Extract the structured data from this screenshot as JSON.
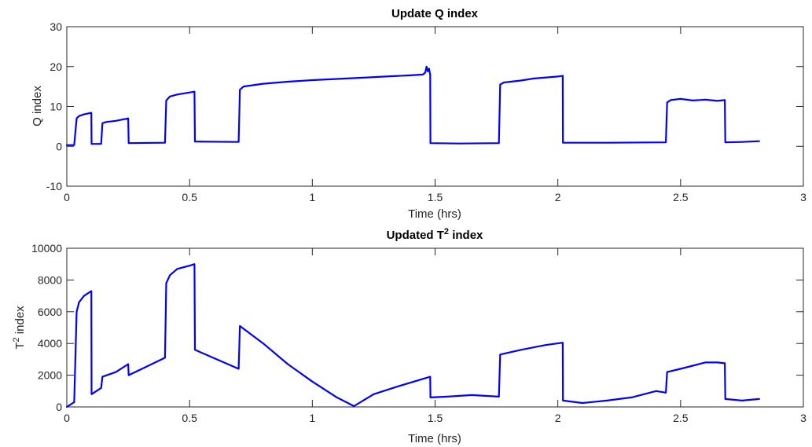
{
  "chart_data": [
    {
      "type": "line",
      "title": "Update Q index",
      "xlabel": "Time (hrs)",
      "ylabel": "Q index",
      "xlim": [
        0,
        3
      ],
      "ylim": [
        -10,
        30
      ],
      "x_ticks": [
        "0",
        "0.5",
        "1",
        "1.5",
        "2",
        "2.5",
        "3"
      ],
      "y_ticks": [
        "-10",
        "0",
        "10",
        "20",
        "30"
      ],
      "grid": false,
      "line_color": "#0000ff",
      "series": [
        {
          "x": [
            0.0,
            0.03,
            0.04,
            0.05,
            0.07,
            0.1,
            0.101,
            0.14,
            0.145,
            0.16,
            0.2,
            0.25,
            0.252,
            0.4,
            0.405,
            0.42,
            0.45,
            0.52,
            0.522,
            0.7,
            0.705,
            0.72,
            0.8,
            0.9,
            1.0,
            1.1,
            1.2,
            1.3,
            1.4,
            1.45,
            1.46,
            1.465,
            1.47,
            1.475,
            1.48,
            1.481,
            1.6,
            1.76,
            1.765,
            1.78,
            1.85,
            1.9,
            2.0,
            2.02,
            2.021,
            2.2,
            2.44,
            2.445,
            2.46,
            2.5,
            2.55,
            2.6,
            2.65,
            2.68,
            2.682,
            2.75,
            2.82
          ],
          "y": [
            0.3,
            0.3,
            7.0,
            7.6,
            8.0,
            8.4,
            0.6,
            0.6,
            5.8,
            6.1,
            6.4,
            7.0,
            0.8,
            0.9,
            11.5,
            12.5,
            13.0,
            13.7,
            1.2,
            1.1,
            14.2,
            15.0,
            15.7,
            16.2,
            16.6,
            16.9,
            17.2,
            17.5,
            17.8,
            18.0,
            18.5,
            20.0,
            18.8,
            19.5,
            18.0,
            0.8,
            0.7,
            0.8,
            15.5,
            16.0,
            16.5,
            17.0,
            17.5,
            17.7,
            0.9,
            0.9,
            1.0,
            11.0,
            11.6,
            11.9,
            11.5,
            11.7,
            11.4,
            11.6,
            1.0,
            1.1,
            1.3
          ]
        }
      ]
    },
    {
      "type": "line",
      "title_main": "Updated T",
      "title_sup": "2",
      "title_tail": " index",
      "xlabel": "Time (hrs)",
      "ylabel_main": "T",
      "ylabel_sup": "2",
      "ylabel_tail": " index",
      "xlim": [
        0,
        3
      ],
      "ylim": [
        0,
        10000
      ],
      "x_ticks": [
        "0",
        "0.5",
        "1",
        "1.5",
        "2",
        "2.5",
        "3"
      ],
      "y_ticks": [
        "0",
        "2000",
        "4000",
        "6000",
        "8000",
        "10000"
      ],
      "grid": false,
      "line_color": "#0000ff",
      "series": [
        {
          "x": [
            0.0,
            0.03,
            0.04,
            0.05,
            0.07,
            0.1,
            0.101,
            0.14,
            0.145,
            0.2,
            0.25,
            0.252,
            0.4,
            0.405,
            0.42,
            0.45,
            0.5,
            0.52,
            0.522,
            0.7,
            0.705,
            0.8,
            0.9,
            1.0,
            1.1,
            1.17,
            1.18,
            1.25,
            1.35,
            1.48,
            1.481,
            1.55,
            1.65,
            1.76,
            1.765,
            1.85,
            1.95,
            2.02,
            2.021,
            2.1,
            2.2,
            2.3,
            2.4,
            2.44,
            2.445,
            2.5,
            2.55,
            2.6,
            2.65,
            2.68,
            2.682,
            2.75,
            2.82
          ],
          "y": [
            0,
            300,
            6000,
            6600,
            7000,
            7300,
            800,
            1200,
            1900,
            2200,
            2700,
            2000,
            3100,
            7800,
            8300,
            8700,
            8900,
            9000,
            3600,
            2400,
            5100,
            4000,
            2700,
            1600,
            600,
            50,
            150,
            800,
            1300,
            1900,
            600,
            650,
            750,
            650,
            3300,
            3600,
            3900,
            4050,
            400,
            250,
            400,
            600,
            1000,
            900,
            2200,
            2400,
            2600,
            2800,
            2800,
            2750,
            500,
            400,
            500
          ]
        }
      ]
    }
  ]
}
